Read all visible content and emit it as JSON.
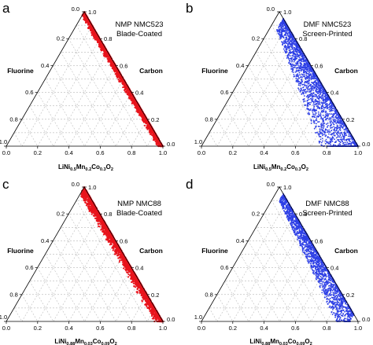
{
  "chart_data": [
    {
      "type": "scatter",
      "subtype": "ternary",
      "panel": "a",
      "title": [
        "NMP NMC523",
        "Blade-Coated"
      ],
      "axes": {
        "bottom": "LiNi0.5Mn0.2Co0.3O2",
        "left": "Fluorine",
        "right": "Carbon"
      },
      "bottom_label_parts": [
        [
          "LiNi",
          ""
        ],
        [
          "0.5",
          "sub"
        ],
        [
          "Mn",
          ""
        ],
        [
          "0.2",
          "sub"
        ],
        [
          "Co",
          ""
        ],
        [
          "0.3",
          "sub"
        ],
        [
          "O",
          ""
        ],
        [
          "2",
          "sub"
        ]
      ],
      "ticks": {
        "bottom": [
          "0.0",
          "0.2",
          "0.4",
          "0.6",
          "0.8",
          "1.0"
        ],
        "left": [
          "1.0",
          "0.8",
          "0.6",
          "0.4",
          "0.2",
          "0.0"
        ],
        "right": [
          "1.0",
          "0.8",
          "0.6",
          "0.4",
          "0.2",
          "0.0"
        ]
      },
      "color": "#e8141c",
      "grid": true,
      "fluorine_range": [
        0.0,
        0.04
      ],
      "nmc_range": [
        0.0,
        1.0
      ],
      "distribution": "dense band along Carbon–NMC edge"
    },
    {
      "type": "scatter",
      "subtype": "ternary",
      "panel": "b",
      "title": [
        "DMF NMC523",
        "Screen-Printed"
      ],
      "axes": {
        "bottom": "LiNi0.5Mn0.2Co0.3O2",
        "left": "Fluorine",
        "right": "Carbon"
      },
      "bottom_label_parts": [
        [
          "LiNi",
          ""
        ],
        [
          "0.5",
          "sub"
        ],
        [
          "Mn",
          ""
        ],
        [
          "0.2",
          "sub"
        ],
        [
          "Co",
          ""
        ],
        [
          "0.3",
          "sub"
        ],
        [
          "O",
          ""
        ],
        [
          "2",
          "sub"
        ]
      ],
      "ticks": {
        "bottom": [
          "0.0",
          "0.2",
          "0.4",
          "0.6",
          "0.8",
          "1.0"
        ],
        "left": [
          "1.0",
          "0.8",
          "0.6",
          "0.4",
          "0.2",
          "0.0"
        ],
        "right": [
          "1.0",
          "0.8",
          "0.6",
          "0.4",
          "0.2",
          "0.0"
        ]
      },
      "color": "#2d3fe6",
      "grid": true,
      "fluorine_range": [
        0.0,
        0.3
      ],
      "nmc_range": [
        0.05,
        1.0
      ],
      "distribution": "dense band along Carbon–NMC edge with wide spread toward Fluorine"
    },
    {
      "type": "scatter",
      "subtype": "ternary",
      "panel": "c",
      "title": [
        "NMP NMC88",
        "Blade-Coated"
      ],
      "axes": {
        "bottom": "LiNi0.88Mn0.03Co0.09O2",
        "left": "Fluorine",
        "right": "Carbon"
      },
      "bottom_label_parts": [
        [
          "LiNi",
          ""
        ],
        [
          "0.88",
          "sub"
        ],
        [
          "Mn",
          ""
        ],
        [
          "0.03",
          "sub"
        ],
        [
          "Co",
          ""
        ],
        [
          "0.09",
          "sub"
        ],
        [
          "O",
          ""
        ],
        [
          "2",
          "sub"
        ]
      ],
      "ticks": {
        "bottom": [
          "0.0",
          "0.2",
          "0.4",
          "0.6",
          "0.8",
          "1.0"
        ],
        "left": [
          "1.0",
          "0.8",
          "0.6",
          "0.4",
          "0.2",
          "0.0"
        ],
        "right": [
          "1.0",
          "0.8",
          "0.6",
          "0.4",
          "0.2",
          "0.0"
        ]
      },
      "color": "#e8141c",
      "grid": true,
      "fluorine_range": [
        0.0,
        0.06
      ],
      "nmc_range": [
        0.0,
        1.0
      ],
      "distribution": "dense band along Carbon–NMC edge"
    },
    {
      "type": "scatter",
      "subtype": "ternary",
      "panel": "d",
      "title": [
        "DMF NMC88",
        "Screen-Printed"
      ],
      "axes": {
        "bottom": "LiNi0.88Mn0.03Co0.09O2",
        "left": "Fluorine",
        "right": "Carbon"
      },
      "bottom_label_parts": [
        [
          "LiNi",
          ""
        ],
        [
          "0.88",
          "sub"
        ],
        [
          "Mn",
          ""
        ],
        [
          "0.03",
          "sub"
        ],
        [
          "Co",
          ""
        ],
        [
          "0.09",
          "sub"
        ],
        [
          "O",
          ""
        ],
        [
          "2",
          "sub"
        ]
      ],
      "ticks": {
        "bottom": [
          "0.0",
          "0.2",
          "0.4",
          "0.6",
          "0.8",
          "1.0"
        ],
        "left": [
          "1.0",
          "0.8",
          "0.6",
          "0.4",
          "0.2",
          "0.0"
        ],
        "right": [
          "1.0",
          "0.8",
          "0.6",
          "0.4",
          "0.2",
          "0.0"
        ]
      },
      "color": "#2d3fe6",
      "grid": true,
      "fluorine_range": [
        0.0,
        0.16
      ],
      "nmc_range": [
        0.05,
        0.95
      ],
      "distribution": "band along Carbon–NMC edge with moderate spread toward Fluorine"
    }
  ]
}
